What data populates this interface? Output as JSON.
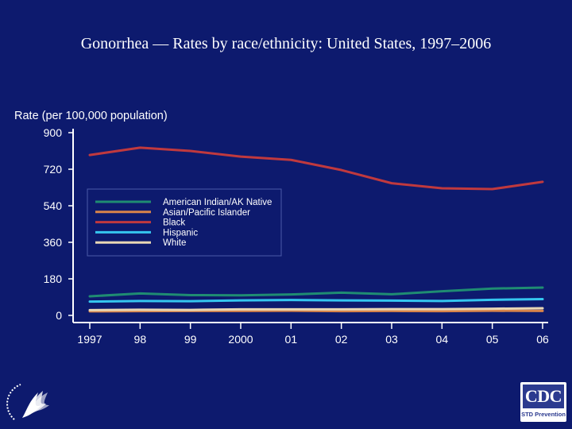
{
  "chart_data": {
    "type": "line",
    "title": "Gonorrhea — Rates by race/ethnicity: United States, 1997–2006",
    "ylabel": "Rate (per 100,000 population)",
    "xlabel": "",
    "categories": [
      "1997",
      "98",
      "99",
      "2000",
      "01",
      "02",
      "03",
      "04",
      "05",
      "06"
    ],
    "yticks": [
      0,
      180,
      360,
      540,
      720,
      900
    ],
    "ylim": [
      0,
      900
    ],
    "legend_position": "left-middle",
    "series": [
      {
        "name": "American Indian/AK Native",
        "color": "#1f8c72",
        "values": [
          94,
          108,
          100,
          99,
          103,
          112,
          104,
          119,
          132,
          137
        ]
      },
      {
        "name": "Asian/Pacific Islander",
        "color": "#d9844a",
        "values": [
          20,
          21,
          22,
          22,
          23,
          21,
          22,
          21,
          23,
          22
        ]
      },
      {
        "name": "Black",
        "color": "#c0393e",
        "values": [
          790,
          826,
          810,
          782,
          766,
          716,
          651,
          626,
          622,
          658
        ]
      },
      {
        "name": "Hispanic",
        "color": "#35c6ef",
        "values": [
          68,
          71,
          70,
          74,
          76,
          74,
          73,
          71,
          77,
          80
        ]
      },
      {
        "name": "White",
        "color": "#e8d7b5",
        "values": [
          26,
          28,
          27,
          30,
          30,
          30,
          31,
          31,
          33,
          35
        ]
      }
    ]
  },
  "logos": {
    "cdc_text": "CDC",
    "cdc_subtitle": "STD Prevention",
    "hhs_name": "Department of Health & Human Services USA",
    "hhs_color": "#ffffff",
    "cdc_color": "#2b3a8f"
  }
}
